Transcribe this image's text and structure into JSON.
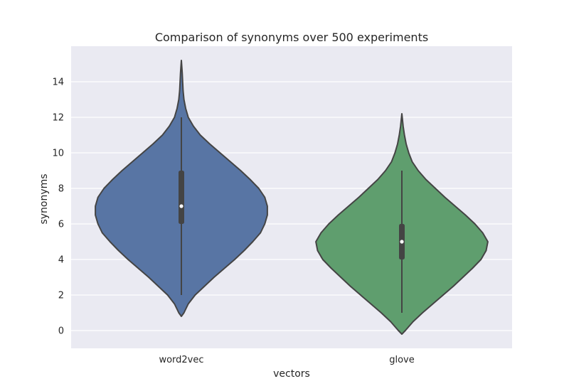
{
  "chart_data": {
    "type": "violin",
    "title": "Comparison of synonyms over 500 experiments",
    "xlabel": "vectors",
    "ylabel": "synonyms",
    "ylim": [
      -1,
      16
    ],
    "yticks": [
      0,
      2,
      4,
      6,
      8,
      10,
      12,
      14
    ],
    "grid": true,
    "categories": [
      "word2vec",
      "glove"
    ],
    "series": [
      {
        "category": "word2vec",
        "color": "#5875a4",
        "density_min": 0.8,
        "density_max": 15.2,
        "median": 7,
        "q1": 6,
        "q3": 9,
        "whisker_low": 2,
        "whisker_high": 12,
        "profile": [
          [
            0.8,
            0.0
          ],
          [
            1.0,
            0.03
          ],
          [
            1.5,
            0.08
          ],
          [
            2.0,
            0.16
          ],
          [
            2.5,
            0.27
          ],
          [
            3.0,
            0.38
          ],
          [
            3.5,
            0.5
          ],
          [
            4.0,
            0.62
          ],
          [
            4.5,
            0.73
          ],
          [
            5.0,
            0.83
          ],
          [
            5.5,
            0.92
          ],
          [
            6.0,
            0.97
          ],
          [
            6.5,
            1.0
          ],
          [
            7.0,
            1.0
          ],
          [
            7.5,
            0.97
          ],
          [
            8.0,
            0.9
          ],
          [
            8.5,
            0.8
          ],
          [
            9.0,
            0.69
          ],
          [
            9.5,
            0.57
          ],
          [
            10.0,
            0.45
          ],
          [
            10.5,
            0.33
          ],
          [
            11.0,
            0.22
          ],
          [
            11.5,
            0.14
          ],
          [
            12.0,
            0.08
          ],
          [
            12.5,
            0.05
          ],
          [
            13.0,
            0.03
          ],
          [
            13.5,
            0.02
          ],
          [
            14.0,
            0.015
          ],
          [
            14.5,
            0.01
          ],
          [
            15.2,
            0.0
          ]
        ]
      },
      {
        "category": "glove",
        "color": "#5f9e6e",
        "density_min": -0.2,
        "density_max": 12.2,
        "median": 5,
        "q1": 4,
        "q3": 6,
        "whisker_low": 1,
        "whisker_high": 9,
        "profile": [
          [
            -0.2,
            0.0
          ],
          [
            0.0,
            0.04
          ],
          [
            0.5,
            0.13
          ],
          [
            1.0,
            0.24
          ],
          [
            1.5,
            0.36
          ],
          [
            2.0,
            0.48
          ],
          [
            2.5,
            0.6
          ],
          [
            3.0,
            0.71
          ],
          [
            3.5,
            0.82
          ],
          [
            4.0,
            0.92
          ],
          [
            4.5,
            0.98
          ],
          [
            5.0,
            1.0
          ],
          [
            5.5,
            0.94
          ],
          [
            6.0,
            0.85
          ],
          [
            6.5,
            0.74
          ],
          [
            7.0,
            0.62
          ],
          [
            7.5,
            0.5
          ],
          [
            8.0,
            0.39
          ],
          [
            8.5,
            0.28
          ],
          [
            9.0,
            0.19
          ],
          [
            9.5,
            0.12
          ],
          [
            10.0,
            0.08
          ],
          [
            10.5,
            0.05
          ],
          [
            11.0,
            0.03
          ],
          [
            11.5,
            0.015
          ],
          [
            12.2,
            0.0
          ]
        ]
      }
    ]
  }
}
